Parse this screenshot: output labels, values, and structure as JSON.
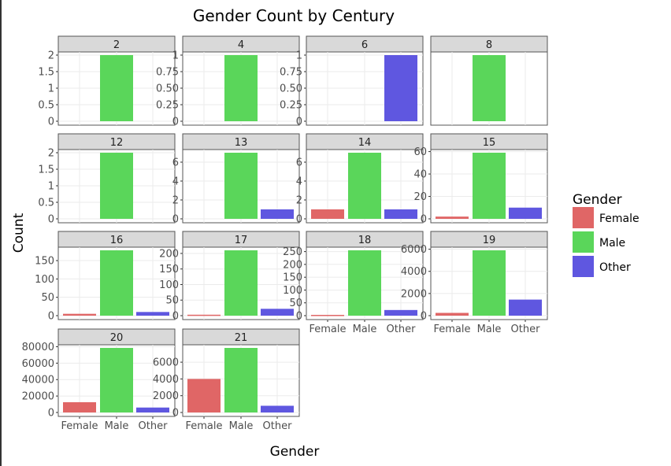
{
  "chart_data": {
    "type": "bar",
    "title": "Gender Count by Century",
    "xlabel": "Gender",
    "ylabel": "Count",
    "categories": [
      "Female",
      "Male",
      "Other"
    ],
    "legend": {
      "title": "Gender",
      "placement": "right",
      "entries": [
        {
          "label": "Female",
          "color": "#E06666"
        },
        {
          "label": "Male",
          "color": "#5AD65A"
        },
        {
          "label": "Other",
          "color": "#5F57E0"
        }
      ]
    },
    "facets": [
      {
        "label": "2",
        "values": [
          0,
          2,
          0
        ],
        "ylim": [
          0,
          2
        ],
        "yticks": [
          "0",
          "0.5",
          "1",
          "1.5",
          "2"
        ],
        "ytick_values": [
          0,
          0.5,
          1,
          1.5,
          2
        ]
      },
      {
        "label": "4",
        "values": [
          0,
          1,
          0
        ],
        "ylim": [
          0,
          1
        ],
        "yticks": [
          "0",
          "0.25",
          "0.50",
          "0.75",
          "1"
        ],
        "ytick_values": [
          0,
          0.25,
          0.5,
          0.75,
          1
        ]
      },
      {
        "label": "6",
        "values": [
          0,
          0,
          1
        ],
        "ylim": [
          0,
          1
        ],
        "yticks": [
          "0",
          "0.25",
          "0.50",
          "0.75",
          "1"
        ],
        "ytick_values": [
          0,
          0.25,
          0.5,
          0.75,
          1
        ]
      },
      {
        "label": "8",
        "values": [
          0,
          1,
          0
        ],
        "ylim": [
          0,
          1
        ],
        "yticks": [],
        "ytick_values": []
      },
      {
        "label": "12",
        "values": [
          0,
          2,
          0
        ],
        "ylim": [
          0,
          2
        ],
        "yticks": [
          "0",
          "0.5",
          "1",
          "1.5",
          "2"
        ],
        "ytick_values": [
          0,
          0.5,
          1,
          1.5,
          2
        ]
      },
      {
        "label": "13",
        "values": [
          0,
          7,
          1
        ],
        "ylim": [
          0,
          7
        ],
        "yticks": [
          "0",
          "2",
          "4",
          "6"
        ],
        "ytick_values": [
          0,
          2,
          4,
          6
        ]
      },
      {
        "label": "14",
        "values": [
          1,
          7,
          1
        ],
        "ylim": [
          0,
          7
        ],
        "yticks": [
          "0",
          "2",
          "4",
          "6"
        ],
        "ytick_values": [
          0,
          2,
          4,
          6
        ]
      },
      {
        "label": "15",
        "values": [
          2,
          59,
          10
        ],
        "ylim": [
          0,
          59
        ],
        "yticks": [
          "0",
          "20",
          "40",
          "60"
        ],
        "ytick_values": [
          0,
          20,
          40,
          60
        ]
      },
      {
        "label": "16",
        "values": [
          5,
          178,
          10
        ],
        "ylim": [
          0,
          178
        ],
        "yticks": [
          "0",
          "50",
          "100",
          "150"
        ],
        "ytick_values": [
          0,
          50,
          100,
          150
        ]
      },
      {
        "label": "17",
        "values": [
          3,
          210,
          22
        ],
        "ylim": [
          0,
          210
        ],
        "yticks": [
          "0",
          "50",
          "100",
          "150",
          "200"
        ],
        "ytick_values": [
          0,
          50,
          100,
          150,
          200
        ]
      },
      {
        "label": "18",
        "values": [
          3,
          255,
          22
        ],
        "ylim": [
          0,
          255
        ],
        "yticks": [
          "0",
          "50",
          "100",
          "150",
          "200",
          "250"
        ],
        "ytick_values": [
          0,
          50,
          100,
          150,
          200,
          250
        ]
      },
      {
        "label": "19",
        "values": [
          250,
          5900,
          1450
        ],
        "ylim": [
          0,
          5900
        ],
        "yticks": [
          "0",
          "2000",
          "4000",
          "6000"
        ],
        "ytick_values": [
          0,
          2000,
          4000,
          6000
        ]
      },
      {
        "label": "20",
        "values": [
          12500,
          78500,
          6000
        ],
        "ylim": [
          0,
          78500
        ],
        "yticks": [
          "0",
          "20000",
          "40000",
          "60000",
          "80000"
        ],
        "ytick_values": [
          0,
          20000,
          40000,
          60000,
          80000
        ]
      },
      {
        "label": "21",
        "values": [
          4000,
          7700,
          800
        ],
        "ylim": [
          0,
          7700
        ],
        "yticks": [
          "0",
          "2000",
          "4000",
          "6000"
        ],
        "ytick_values": [
          0,
          2000,
          4000,
          6000
        ]
      }
    ]
  }
}
